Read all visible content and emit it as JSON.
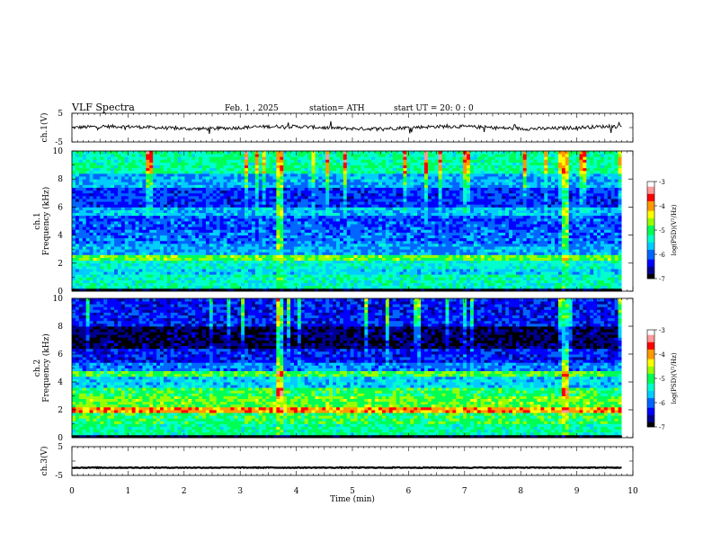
{
  "header": {
    "title": "VLF  Spectra",
    "date": "Feb. 1  , 2025",
    "station": "station= ATH",
    "start": "start  UT  =    20: 0   : 0"
  },
  "colors": {
    "spectro": [
      "#000000",
      "#00008c",
      "#0000ff",
      "#0066ff",
      "#00ccff",
      "#00ffcc",
      "#00ff55",
      "#99ff00",
      "#ffff00",
      "#ff9900",
      "#ff0000",
      "#ff9999",
      "#ffffff"
    ]
  },
  "chart_data": [
    {
      "type": "line",
      "name": "ch1-time-series",
      "ylabel": "ch.1(V)",
      "yticks": [
        "5",
        "-5"
      ],
      "ylim": [
        -5,
        5
      ],
      "xlim": [
        0,
        10
      ],
      "baseline": 0,
      "noise_amplitude": 0.6
    },
    {
      "type": "heatmap",
      "name": "ch1-spectrogram",
      "ylabel": "ch.1",
      "ylabel2": "Frequency  (kHz)",
      "yticks": [
        "0",
        "2",
        "4",
        "6",
        "8",
        "10"
      ],
      "ylim": [
        0,
        10
      ],
      "xlim": [
        0,
        9.8
      ],
      "colorbar": {
        "ticks": [
          "-3",
          "-4",
          "-5",
          "-6",
          "-7"
        ],
        "label": "log(PSD)(V²/Hz)",
        "range": [
          -7,
          -3
        ]
      },
      "bands": [
        {
          "f": [
            0,
            0.15
          ],
          "v": -7.0
        },
        {
          "f": [
            0.15,
            0.3
          ],
          "v": -4.5
        },
        {
          "f": [
            0.3,
            1.2
          ],
          "v": -5.3
        },
        {
          "f": [
            1.2,
            1.6
          ],
          "v": -5.6
        },
        {
          "f": [
            1.6,
            2.2
          ],
          "v": -5.4
        },
        {
          "f": [
            2.2,
            2.6
          ],
          "v": -4.8
        },
        {
          "f": [
            2.6,
            3.5
          ],
          "v": -5.8
        },
        {
          "f": [
            3.5,
            4.5
          ],
          "v": -6.0
        },
        {
          "f": [
            4.5,
            5.5
          ],
          "v": -6.1
        },
        {
          "f": [
            5.5,
            6.0
          ],
          "v": -5.7
        },
        {
          "f": [
            6.0,
            7.5
          ],
          "v": -6.2
        },
        {
          "f": [
            7.5,
            8.5
          ],
          "v": -5.8
        },
        {
          "f": [
            8.5,
            10.0
          ],
          "v": -5.2
        }
      ],
      "events_min": [
        3.72,
        8.78
      ]
    },
    {
      "type": "heatmap",
      "name": "ch2-spectrogram",
      "ylabel": "ch.2",
      "ylabel2": "Frequency  (kHz)",
      "yticks": [
        "0",
        "2",
        "4",
        "6",
        "8",
        "10"
      ],
      "ylim": [
        0,
        10
      ],
      "xlim": [
        0,
        9.8
      ],
      "colorbar": {
        "ticks": [
          "-3",
          "-4",
          "-5",
          "-6",
          "-7"
        ],
        "label": "log(PSD)(V²/Hz)",
        "range": [
          -7,
          -3
        ]
      },
      "bands": [
        {
          "f": [
            0,
            0.2
          ],
          "v": -7.0
        },
        {
          "f": [
            0.2,
            1.0
          ],
          "v": -5.2
        },
        {
          "f": [
            1.0,
            1.8
          ],
          "v": -5.0
        },
        {
          "f": [
            1.8,
            2.2
          ],
          "v": -4.0
        },
        {
          "f": [
            2.2,
            3.0
          ],
          "v": -4.8
        },
        {
          "f": [
            3.0,
            3.7
          ],
          "v": -5.0
        },
        {
          "f": [
            3.7,
            4.4
          ],
          "v": -5.6
        },
        {
          "f": [
            4.4,
            4.8
          ],
          "v": -4.9
        },
        {
          "f": [
            4.8,
            5.5
          ],
          "v": -5.9
        },
        {
          "f": [
            5.5,
            6.5
          ],
          "v": -6.3
        },
        {
          "f": [
            6.5,
            8.0
          ],
          "v": -6.8
        },
        {
          "f": [
            8.0,
            10.0
          ],
          "v": -6.3
        }
      ],
      "events_min": [
        3.72,
        8.78
      ]
    },
    {
      "type": "line",
      "name": "ch3-time-series",
      "ylabel": "ch.3(V)",
      "yticks": [
        "5",
        "-5"
      ],
      "ylim": [
        -5,
        5
      ],
      "xlim": [
        0,
        10
      ],
      "baseline": -2.3,
      "noise_amplitude": 0.15
    }
  ],
  "xaxis": {
    "label": "Time  (min)",
    "ticks": [
      "0",
      "1",
      "2",
      "3",
      "4",
      "5",
      "6",
      "7",
      "8",
      "9",
      "10"
    ],
    "xlim": [
      0,
      10
    ]
  }
}
